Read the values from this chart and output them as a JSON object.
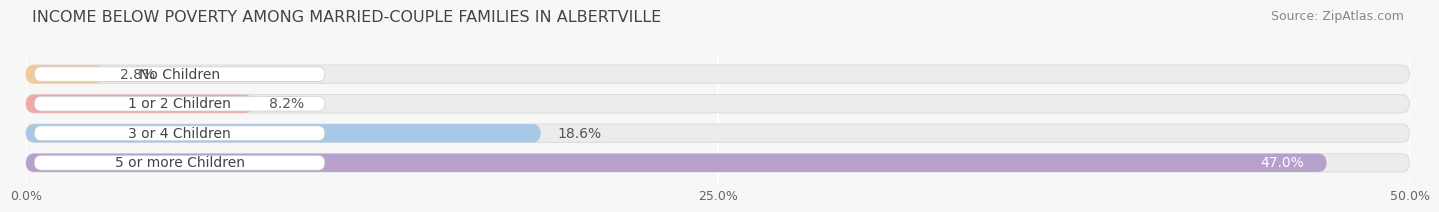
{
  "title": "INCOME BELOW POVERTY AMONG MARRIED-COUPLE FAMILIES IN ALBERTVILLE",
  "source": "Source: ZipAtlas.com",
  "categories": [
    "No Children",
    "1 or 2 Children",
    "3 or 4 Children",
    "5 or more Children"
  ],
  "values": [
    2.8,
    8.2,
    18.6,
    47.0
  ],
  "bar_colors": [
    "#f5c898",
    "#f0a8a8",
    "#a8c8e8",
    "#b8a0cc"
  ],
  "value_colors": [
    "#555555",
    "#555555",
    "#555555",
    "#ffffff"
  ],
  "xlim": [
    0,
    50
  ],
  "xticks": [
    0,
    25,
    50
  ],
  "xtick_labels": [
    "0.0%",
    "25.0%",
    "50.0%"
  ],
  "title_fontsize": 11.5,
  "source_fontsize": 9,
  "label_fontsize": 10,
  "value_fontsize": 10,
  "bar_height": 0.62,
  "background_color": "#f7f7f7",
  "bar_bg_color": "#ececec",
  "bar_border_color": "#dddddd",
  "label_bg_color": "#ffffff"
}
